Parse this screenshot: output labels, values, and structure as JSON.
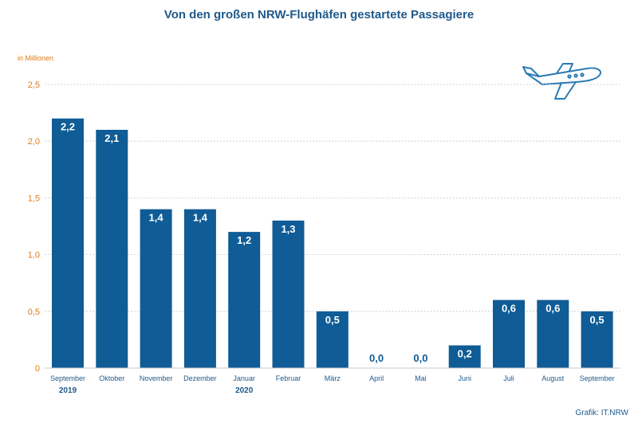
{
  "chart_data": {
    "type": "bar",
    "title": "Von den großen NRW-Flughäfen gestartete Passagiere",
    "unit_label": "in Millionen",
    "categories": [
      "September",
      "Oktober",
      "November",
      "Dezember",
      "Januar",
      "Februar",
      "März",
      "April",
      "Mai",
      "Juni",
      "Juli",
      "August",
      "September"
    ],
    "year_labels": [
      {
        "category_index": 0,
        "label": "2019"
      },
      {
        "category_index": 4,
        "label": "2020"
      }
    ],
    "values": [
      2.2,
      2.1,
      1.4,
      1.4,
      1.2,
      1.3,
      0.5,
      0.0,
      0.0,
      0.2,
      0.6,
      0.6,
      0.5
    ],
    "value_labels": [
      "2,2",
      "2,1",
      "1,4",
      "1,4",
      "1,2",
      "1,3",
      "0,5",
      "0,0",
      "0,0",
      "0,2",
      "0,6",
      "0,6",
      "0,5"
    ],
    "ylim": [
      0,
      2.5
    ],
    "yticks": [
      0,
      0.5,
      1.0,
      1.5,
      2.0,
      2.5
    ],
    "ytick_labels": [
      "0",
      "0,5",
      "1,0",
      "1,5",
      "2,0",
      "2,5"
    ],
    "grid": true,
    "bar_color": "#0f5c96",
    "axis_label_color": "#e07b1a"
  },
  "source": "Grafik: IT.NRW",
  "icon": "airplane-icon"
}
